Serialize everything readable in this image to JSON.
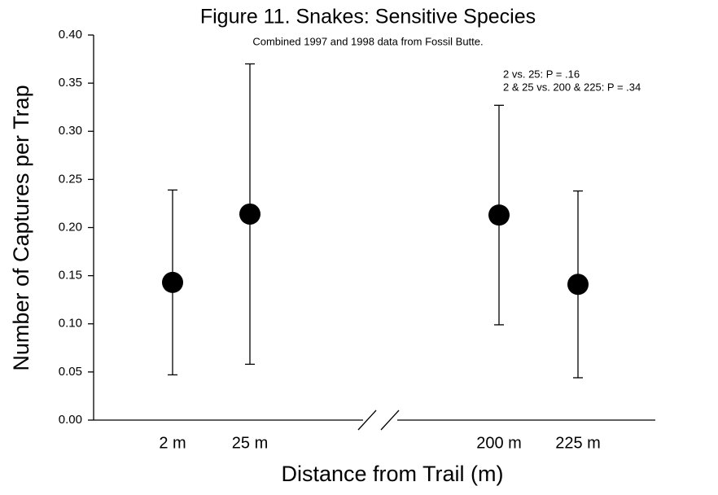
{
  "chart_data": {
    "type": "errorbar",
    "title": "Figure 11. Snakes: Sensitive Species",
    "subtitle": "Combined 1997 and 1998 data from Fossil Butte.",
    "annotations": [
      "2 vs. 25: P = .16",
      "2 & 25 vs. 200 & 225: P = .34"
    ],
    "x_label": "Distance from Trail (m)",
    "y_label": "Number of Captures per Trap",
    "categories": [
      "2 m",
      "25 m",
      "200 m",
      "225 m"
    ],
    "values": [
      0.143,
      0.214,
      0.213,
      0.141
    ],
    "errors": [
      0.096,
      0.156,
      0.114,
      0.097
    ],
    "color": "#000000",
    "ylim": [
      0,
      0.4
    ],
    "yticks": [
      {
        "value": 0,
        "label": "0.00"
      },
      {
        "value": 0.05,
        "label": "0.05"
      },
      {
        "value": 0.1,
        "label": "0.10"
      },
      {
        "value": 0.15,
        "label": "0.15"
      },
      {
        "value": 0.2,
        "label": "0.20"
      },
      {
        "value": 0.25,
        "label": "0.25"
      },
      {
        "value": 0.3,
        "label": "0.30"
      },
      {
        "value": 0.35,
        "label": "0.35"
      },
      {
        "value": 0.4,
        "label": "0.40"
      }
    ],
    "grid": false
  }
}
